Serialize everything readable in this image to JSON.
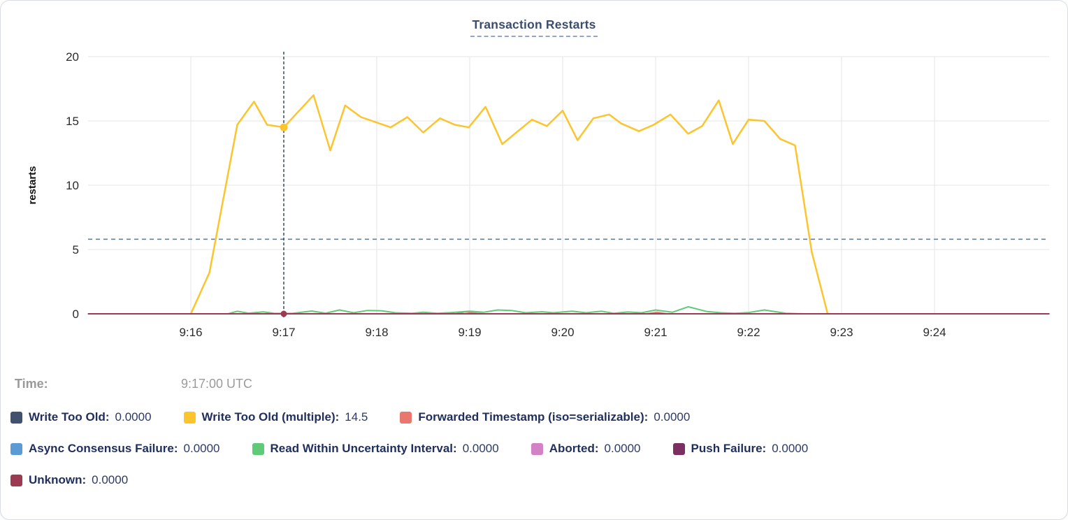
{
  "title": "Transaction Restarts",
  "time_readout": {
    "label": "Time:",
    "value": "9:17:00 UTC"
  },
  "colors": {
    "grid": "#e5e5e5",
    "tick_text": "#2b2b2b",
    "axis_label_text": "#111111",
    "threshold_dash": "#64819c",
    "crosshair_dash": "#34495e",
    "title_text": "#3c4e6d",
    "legend_text": "#212f5e"
  },
  "chart_data": {
    "type": "line",
    "title": "Transaction Restarts",
    "xlabel": "",
    "ylabel": "restarts",
    "ylim": [
      0,
      20
    ],
    "y_ticks": [
      0,
      5,
      10,
      15,
      20
    ],
    "x_ticks": [
      {
        "t": 16,
        "label": "9:16"
      },
      {
        "t": 17,
        "label": "9:17"
      },
      {
        "t": 18,
        "label": "9:18"
      },
      {
        "t": 19,
        "label": "9:19"
      },
      {
        "t": 20,
        "label": "9:20"
      },
      {
        "t": 21,
        "label": "9:21"
      },
      {
        "t": 22,
        "label": "9:22"
      },
      {
        "t": 23,
        "label": "9:23"
      },
      {
        "t": 24,
        "label": "9:24"
      }
    ],
    "x_range_minutes": [
      14.9,
      25.23
    ],
    "grid": true,
    "legend_position": "bottom",
    "threshold_line": {
      "value": 5.8,
      "style": "dashed"
    },
    "crosshair": {
      "t": 17,
      "time_label": "9:17:00 UTC",
      "dots": [
        {
          "series": "Write Too Old (multiple)",
          "value": 14.5,
          "radius": 5.5
        },
        {
          "series": "Unknown",
          "value": 0,
          "radius": 4.5
        }
      ]
    },
    "series": [
      {
        "name": "Write Too Old",
        "color": "#42526e",
        "width": 2,
        "value_at_cursor": "0.0000",
        "points": [
          [
            14.9,
            0
          ],
          [
            25.23,
            0
          ]
        ]
      },
      {
        "name": "Write Too Old (multiple)",
        "color": "#fcc42d",
        "width": 2.5,
        "value_at_cursor": "14.5",
        "points": [
          [
            16.0,
            0
          ],
          [
            16.2,
            3.2
          ],
          [
            16.5,
            14.7
          ],
          [
            16.68,
            16.5
          ],
          [
            16.82,
            14.7
          ],
          [
            17.0,
            14.5
          ],
          [
            17.32,
            17.0
          ],
          [
            17.5,
            12.7
          ],
          [
            17.66,
            16.2
          ],
          [
            17.83,
            15.3
          ],
          [
            18.15,
            14.5
          ],
          [
            18.33,
            15.3
          ],
          [
            18.5,
            14.1
          ],
          [
            18.68,
            15.2
          ],
          [
            18.84,
            14.7
          ],
          [
            18.99,
            14.5
          ],
          [
            19.17,
            16.1
          ],
          [
            19.35,
            13.2
          ],
          [
            19.67,
            15.1
          ],
          [
            19.83,
            14.6
          ],
          [
            20.0,
            15.8
          ],
          [
            20.16,
            13.5
          ],
          [
            20.33,
            15.2
          ],
          [
            20.5,
            15.5
          ],
          [
            20.63,
            14.8
          ],
          [
            20.82,
            14.2
          ],
          [
            20.98,
            14.7
          ],
          [
            21.16,
            15.5
          ],
          [
            21.35,
            14.0
          ],
          [
            21.5,
            14.6
          ],
          [
            21.68,
            16.6
          ],
          [
            21.83,
            13.2
          ],
          [
            22.0,
            15.1
          ],
          [
            22.17,
            15.0
          ],
          [
            22.34,
            13.6
          ],
          [
            22.5,
            13.1
          ],
          [
            22.68,
            4.8
          ],
          [
            22.85,
            0
          ]
        ]
      },
      {
        "name": "Forwarded Timestamp (iso=serializable)",
        "color": "#ea776e",
        "width": 2,
        "value_at_cursor": "0.0000",
        "points": [
          [
            14.9,
            0
          ],
          [
            18.85,
            0
          ],
          [
            18.95,
            0.15
          ],
          [
            19.08,
            0.04
          ],
          [
            19.15,
            0
          ],
          [
            20.9,
            0
          ],
          [
            21.02,
            0.12
          ],
          [
            21.12,
            0
          ],
          [
            25.23,
            0
          ]
        ]
      },
      {
        "name": "Async Consensus Failure",
        "color": "#5a9bd3",
        "width": 2,
        "value_at_cursor": "0.0000",
        "points": [
          [
            14.9,
            0
          ],
          [
            25.23,
            0
          ]
        ]
      },
      {
        "name": "Read Within Uncertainty Interval",
        "color": "#5fca78",
        "width": 2,
        "value_at_cursor": "0.0000",
        "points": [
          [
            14.9,
            0
          ],
          [
            16.4,
            0
          ],
          [
            16.5,
            0.2
          ],
          [
            16.62,
            0.05
          ],
          [
            16.78,
            0.15
          ],
          [
            16.9,
            0.03
          ],
          [
            17.1,
            0.04
          ],
          [
            17.3,
            0.22
          ],
          [
            17.45,
            0.05
          ],
          [
            17.6,
            0.3
          ],
          [
            17.75,
            0.08
          ],
          [
            17.9,
            0.26
          ],
          [
            18.05,
            0.24
          ],
          [
            18.2,
            0.08
          ],
          [
            18.38,
            0.04
          ],
          [
            18.5,
            0.12
          ],
          [
            18.65,
            0.04
          ],
          [
            18.8,
            0.1
          ],
          [
            19.0,
            0.2
          ],
          [
            19.15,
            0.12
          ],
          [
            19.3,
            0.3
          ],
          [
            19.45,
            0.26
          ],
          [
            19.6,
            0.08
          ],
          [
            19.78,
            0.16
          ],
          [
            19.9,
            0.08
          ],
          [
            20.1,
            0.2
          ],
          [
            20.25,
            0.08
          ],
          [
            20.42,
            0.2
          ],
          [
            20.55,
            0.04
          ],
          [
            20.7,
            0.14
          ],
          [
            20.85,
            0.08
          ],
          [
            21.0,
            0.3
          ],
          [
            21.18,
            0.12
          ],
          [
            21.35,
            0.55
          ],
          [
            21.55,
            0.18
          ],
          [
            21.7,
            0.08
          ],
          [
            21.85,
            0.04
          ],
          [
            22.0,
            0.1
          ],
          [
            22.17,
            0.3
          ],
          [
            22.4,
            0.04
          ],
          [
            22.6,
            0
          ],
          [
            25.23,
            0
          ]
        ]
      },
      {
        "name": "Aborted",
        "color": "#d382c5",
        "width": 2,
        "value_at_cursor": "0.0000",
        "points": [
          [
            14.9,
            0
          ],
          [
            25.23,
            0
          ]
        ]
      },
      {
        "name": "Push Failure",
        "color": "#7b2f62",
        "width": 2,
        "value_at_cursor": "0.0000",
        "points": [
          [
            14.9,
            0
          ],
          [
            25.23,
            0
          ]
        ]
      },
      {
        "name": "Unknown",
        "color": "#9c3a52",
        "width": 2,
        "value_at_cursor": "0.0000",
        "points": [
          [
            14.9,
            0
          ],
          [
            25.23,
            0
          ]
        ]
      }
    ]
  },
  "legend": {
    "rows": [
      [
        0,
        1,
        2
      ],
      [
        3,
        4,
        5,
        6
      ],
      [
        7
      ]
    ]
  }
}
